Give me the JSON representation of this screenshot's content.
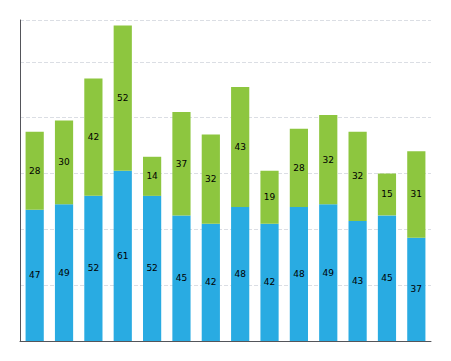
{
  "chart_data": {
    "type": "bar",
    "stacked": true,
    "categories": [
      null,
      null,
      null,
      null,
      null,
      null,
      null,
      null,
      null,
      null,
      null,
      null,
      null,
      null
    ],
    "series": [
      {
        "color": "#29abe2",
        "values": [
          47,
          49,
          52,
          61,
          52,
          45,
          42,
          48,
          42,
          48,
          49,
          43,
          45,
          37
        ]
      },
      {
        "color": "#8dc63f",
        "values": [
          28,
          30,
          42,
          52,
          14,
          37,
          32,
          43,
          19,
          28,
          32,
          32,
          15,
          31
        ]
      }
    ],
    "ylim": [
      0,
      115
    ],
    "yticks": [
      20,
      40,
      60,
      80,
      100
    ],
    "grid": true,
    "data_labels": true,
    "tick_labels": false
  }
}
